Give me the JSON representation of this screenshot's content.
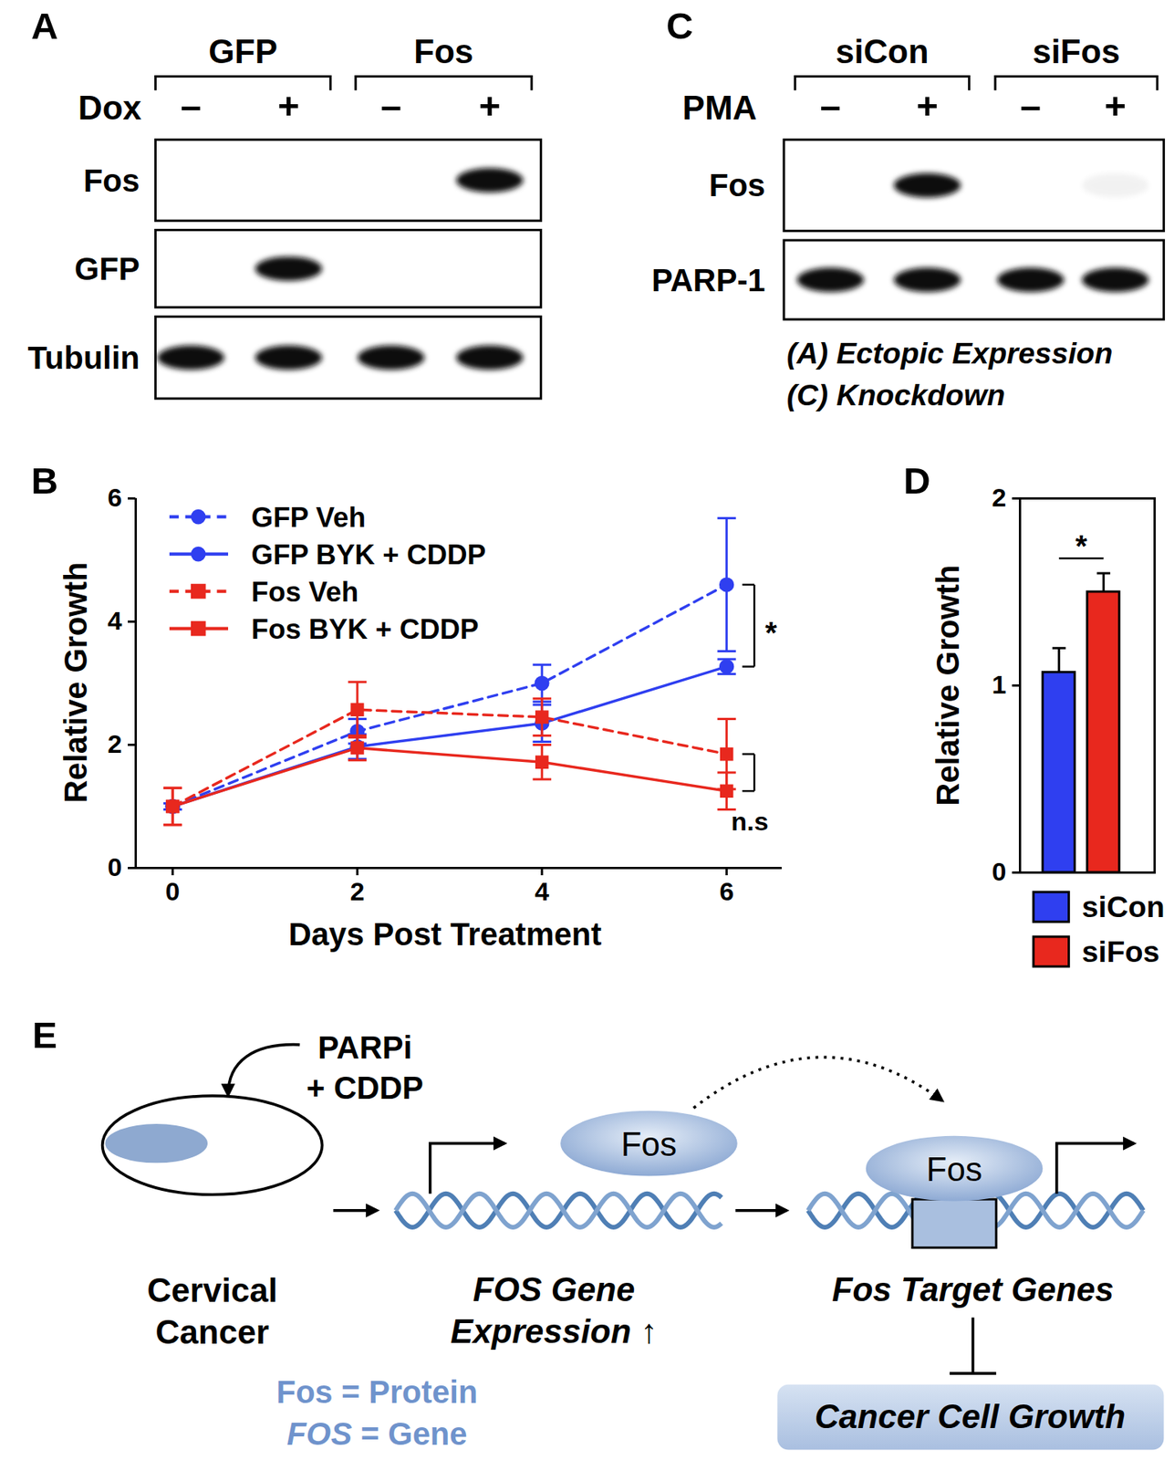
{
  "chart_data": [
    {
      "panel": "B",
      "type": "line",
      "x": [
        0,
        2,
        4,
        6
      ],
      "xlim": [
        -0.4,
        6.6
      ],
      "xticks": [
        0,
        2,
        4,
        6
      ],
      "x_label": "Days Post Treatment",
      "ylim": [
        0,
        6
      ],
      "yticks": [
        0,
        2,
        4,
        6
      ],
      "y_label": "Relative Growth",
      "legend": "top-left",
      "series": [
        {
          "name": "GFP Veh",
          "color": "#2f3ff0",
          "line_style": "dashed",
          "marker": "circle",
          "values": [
            1.0,
            2.22,
            3.0,
            4.6
          ],
          "errors": [
            0.05,
            0.2,
            0.3,
            1.08
          ]
        },
        {
          "name": "GFP BYK + CDDP",
          "color": "#2f3ff0",
          "line_style": "solid",
          "marker": "circle",
          "values": [
            1.0,
            1.97,
            2.35,
            3.27
          ],
          "errors": [
            0.05,
            0.2,
            0.3,
            0.12
          ]
        },
        {
          "name": "Fos Veh",
          "color": "#e8281e",
          "line_style": "dashed",
          "marker": "square",
          "values": [
            1.0,
            2.57,
            2.45,
            1.85
          ],
          "errors": [
            0.3,
            0.45,
            0.3,
            0.57
          ]
        },
        {
          "name": "Fos BYK + CDDP",
          "color": "#e8281e",
          "line_style": "solid",
          "marker": "square",
          "values": [
            1.0,
            1.95,
            1.72,
            1.25
          ],
          "errors": [
            0.3,
            0.2,
            0.28,
            0.3
          ]
        }
      ],
      "annotations": [
        {
          "text": "*",
          "x": 6,
          "between": [
            "GFP Veh",
            "GFP BYK + CDDP"
          ]
        },
        {
          "text": "n.s",
          "x": 6,
          "between": [
            "Fos Veh",
            "Fos BYK + CDDP"
          ]
        }
      ]
    },
    {
      "panel": "D",
      "type": "bar",
      "categories": [
        "siCon",
        "siFos"
      ],
      "values": [
        1.07,
        1.5
      ],
      "errors": [
        0.13,
        0.1
      ],
      "colors": [
        "#2f3ff0",
        "#e8281e"
      ],
      "ylim": [
        0,
        2
      ],
      "yticks": [
        0,
        1,
        2
      ],
      "y_label": "Relative Growth",
      "tick_labels": "y",
      "legend": "bottom",
      "annotations": [
        {
          "text": "*",
          "between": [
            "siCon",
            "siFos"
          ]
        }
      ]
    }
  ],
  "blots": [
    {
      "panel": "A",
      "treatment": "Dox",
      "groups": [
        {
          "label": "GFP",
          "lanes": [
            "–",
            "+"
          ]
        },
        {
          "label": "Fos",
          "lanes": [
            "–",
            "+"
          ]
        }
      ],
      "rows": [
        {
          "label": "Fos",
          "signal": [
            0,
            0,
            0,
            1
          ]
        },
        {
          "label": "GFP",
          "signal": [
            0,
            1,
            0,
            0
          ]
        },
        {
          "label": "Tubulin",
          "signal": [
            1,
            1,
            1,
            1
          ]
        }
      ]
    },
    {
      "panel": "C",
      "treatment": "PMA",
      "groups": [
        {
          "label": "siCon",
          "lanes": [
            "–",
            "+"
          ]
        },
        {
          "label": "siFos",
          "lanes": [
            "–",
            "+"
          ]
        }
      ],
      "rows": [
        {
          "label": "Fos",
          "signal": [
            0,
            1,
            0,
            0.05
          ]
        },
        {
          "label": "PARP-1",
          "signal": [
            1,
            1,
            1,
            1
          ]
        }
      ]
    }
  ],
  "notes": [
    "(A) Ectopic Expression",
    "(C) Knockdown"
  ],
  "diagram": {
    "panel": "E",
    "stimulus": [
      "PARPi",
      "+ CDDP"
    ],
    "cell": [
      "Cervical",
      "Cancer"
    ],
    "protein": "Fos",
    "gene_label": [
      "FOS Gene",
      "Expression ↑"
    ],
    "targets_label": "Fos Target Genes",
    "outcome": "Cancer Cell Growth",
    "key": [
      {
        "term": "Fos",
        "rest": " = Protein",
        "italic": false
      },
      {
        "term": "FOS",
        "rest": " = Gene",
        "italic": true
      }
    ]
  }
}
